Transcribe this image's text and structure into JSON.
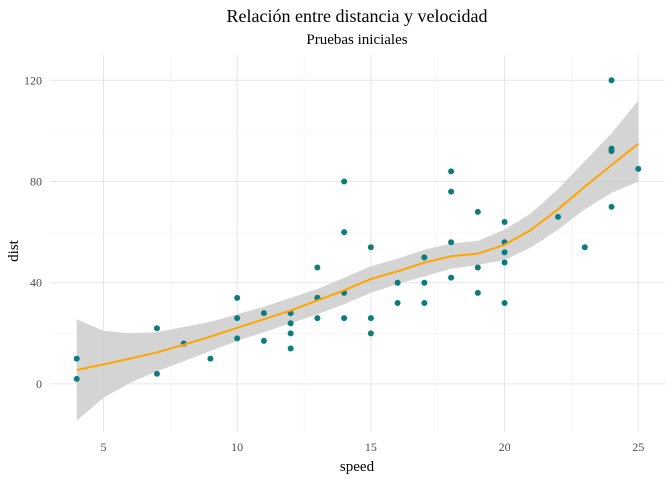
{
  "chart_data": {
    "type": "scatter",
    "title": "Relación entre distancia y velocidad",
    "subtitle": "Pruebas iniciales",
    "xlabel": "speed",
    "ylabel": "dist",
    "xlim": [
      3.0,
      26.0
    ],
    "ylim": [
      -19.0,
      130.0
    ],
    "x_ticks": [
      5,
      10,
      15,
      20,
      25
    ],
    "x_tick_labels": [
      "5",
      "10",
      "15",
      "20",
      "25"
    ],
    "y_ticks": [
      0,
      40,
      80,
      120
    ],
    "y_tick_labels": [
      "0",
      "40",
      "80",
      "120"
    ],
    "grid": true,
    "legend": "none",
    "colors": {
      "points": "#0e7c7b",
      "trend": "#ffa500",
      "band": "#cccccc",
      "grid_major": "#e6e6e6",
      "grid_minor": "#f2f2f2"
    },
    "points": [
      {
        "x": 4,
        "y": 2
      },
      {
        "x": 4,
        "y": 10
      },
      {
        "x": 7,
        "y": 4
      },
      {
        "x": 7,
        "y": 22
      },
      {
        "x": 8,
        "y": 16
      },
      {
        "x": 9,
        "y": 10
      },
      {
        "x": 10,
        "y": 18
      },
      {
        "x": 10,
        "y": 26
      },
      {
        "x": 10,
        "y": 34
      },
      {
        "x": 11,
        "y": 17
      },
      {
        "x": 11,
        "y": 28
      },
      {
        "x": 12,
        "y": 14
      },
      {
        "x": 12,
        "y": 20
      },
      {
        "x": 12,
        "y": 24
      },
      {
        "x": 12,
        "y": 28
      },
      {
        "x": 13,
        "y": 26
      },
      {
        "x": 13,
        "y": 34
      },
      {
        "x": 13,
        "y": 34
      },
      {
        "x": 13,
        "y": 46
      },
      {
        "x": 14,
        "y": 26
      },
      {
        "x": 14,
        "y": 36
      },
      {
        "x": 14,
        "y": 60
      },
      {
        "x": 14,
        "y": 80
      },
      {
        "x": 15,
        "y": 20
      },
      {
        "x": 15,
        "y": 26
      },
      {
        "x": 15,
        "y": 54
      },
      {
        "x": 16,
        "y": 32
      },
      {
        "x": 16,
        "y": 40
      },
      {
        "x": 17,
        "y": 32
      },
      {
        "x": 17,
        "y": 40
      },
      {
        "x": 17,
        "y": 50
      },
      {
        "x": 18,
        "y": 42
      },
      {
        "x": 18,
        "y": 56
      },
      {
        "x": 18,
        "y": 76
      },
      {
        "x": 18,
        "y": 84
      },
      {
        "x": 19,
        "y": 36
      },
      {
        "x": 19,
        "y": 46
      },
      {
        "x": 19,
        "y": 68
      },
      {
        "x": 20,
        "y": 32
      },
      {
        "x": 20,
        "y": 48
      },
      {
        "x": 20,
        "y": 52
      },
      {
        "x": 20,
        "y": 56
      },
      {
        "x": 20,
        "y": 64
      },
      {
        "x": 22,
        "y": 66
      },
      {
        "x": 23,
        "y": 54
      },
      {
        "x": 24,
        "y": 70
      },
      {
        "x": 24,
        "y": 92
      },
      {
        "x": 24,
        "y": 93
      },
      {
        "x": 24,
        "y": 120
      },
      {
        "x": 25,
        "y": 85
      }
    ],
    "trend": {
      "method": "loess",
      "x": [
        4,
        5,
        6,
        7,
        8,
        9,
        10,
        11,
        12,
        13,
        14,
        15,
        16,
        17,
        18,
        19,
        20,
        21,
        22,
        23,
        24,
        25
      ],
      "y": [
        5.5,
        7.7,
        10.0,
        12.5,
        15.5,
        18.7,
        22.2,
        25.6,
        29.0,
        33.0,
        37.0,
        41.5,
        44.5,
        48.0,
        50.5,
        51.5,
        55.0,
        61.0,
        69.0,
        78.0,
        86.5,
        95.0
      ],
      "lower": [
        -14.5,
        -5.5,
        0.5,
        5.0,
        9.0,
        13.0,
        17.0,
        20.5,
        24.0,
        27.5,
        31.5,
        36.0,
        39.5,
        42.5,
        45.5,
        47.0,
        49.0,
        54.0,
        61.0,
        69.0,
        75.5,
        80.0
      ],
      "upper": [
        25.5,
        21.0,
        20.0,
        20.5,
        22.5,
        24.5,
        27.5,
        30.5,
        34.0,
        37.5,
        42.0,
        46.5,
        49.5,
        53.0,
        55.5,
        56.5,
        61.0,
        67.5,
        77.0,
        88.0,
        99.0,
        112.0
      ]
    }
  }
}
